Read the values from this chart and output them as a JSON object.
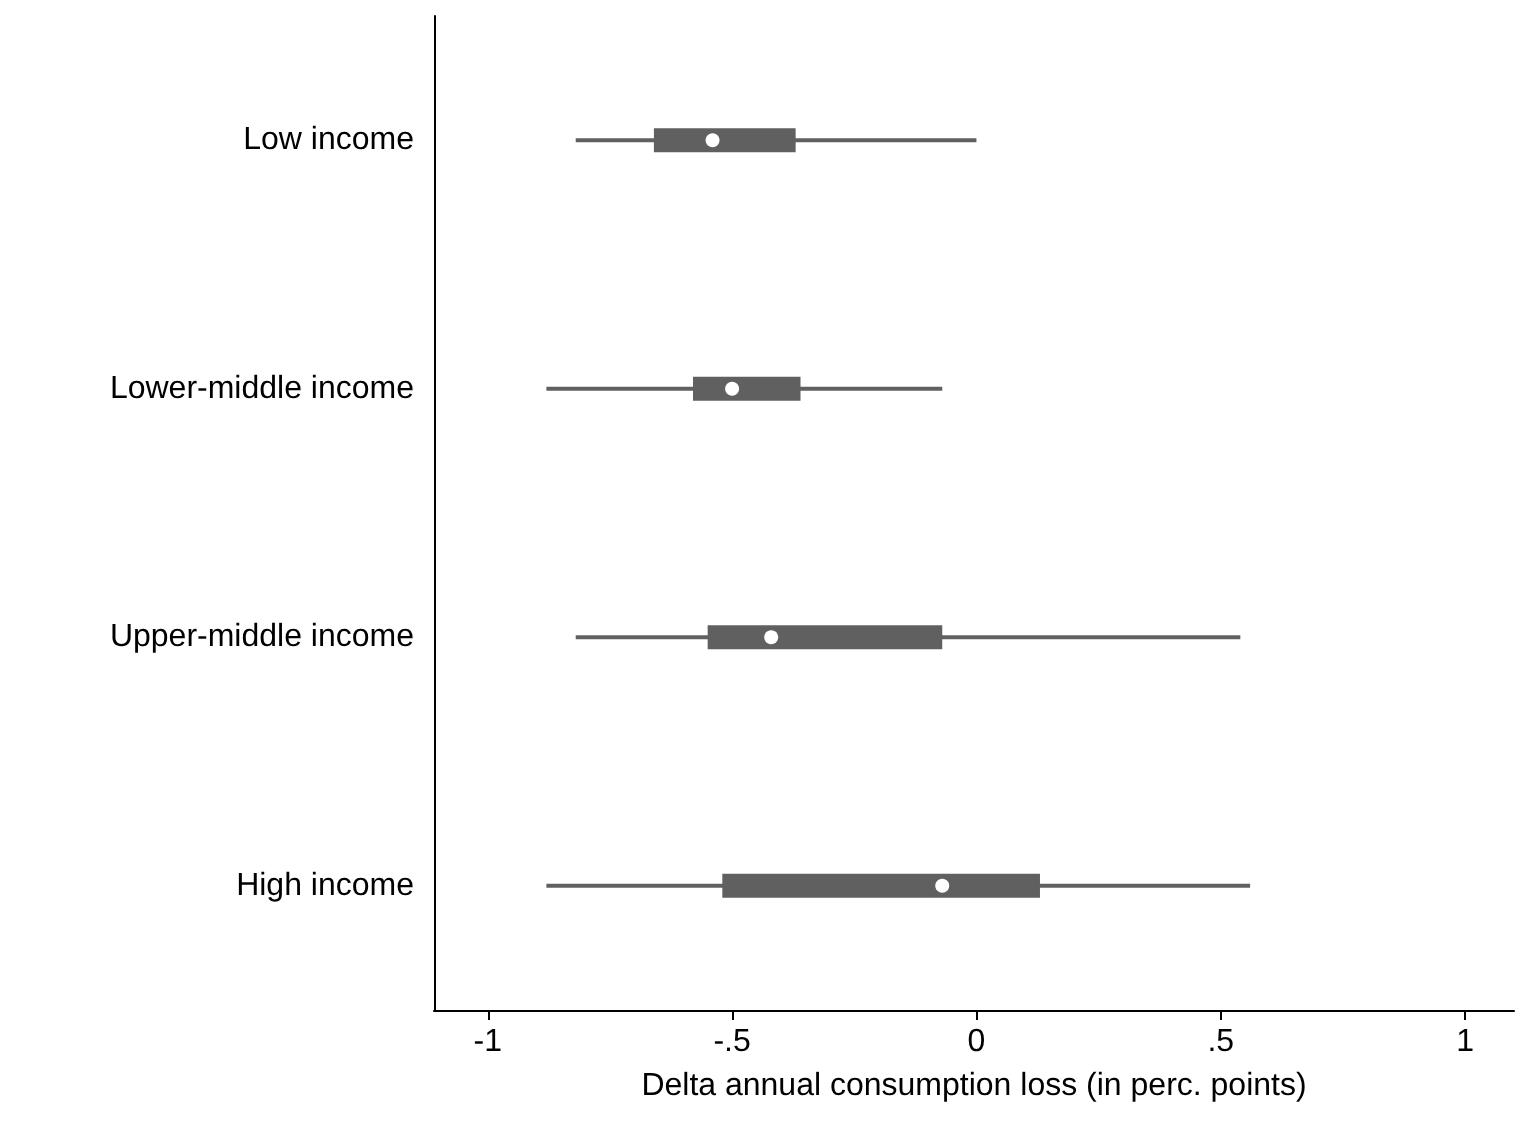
{
  "chart_data": {
    "type": "box",
    "orientation": "horizontal",
    "xlabel": "Delta annual consumption loss (in perc. points)",
    "categories": [
      "Low income",
      "Lower-middle income",
      "Upper-middle income",
      "High income"
    ],
    "xlim": [
      -1.11,
      1.1
    ],
    "xticks": [
      {
        "value": -1,
        "label": "-1"
      },
      {
        "value": -0.5,
        "label": "-.5"
      },
      {
        "value": 0,
        "label": "0"
      },
      {
        "value": 0.5,
        "label": ".5"
      },
      {
        "value": 1,
        "label": "1"
      }
    ],
    "grid": false,
    "series": [
      {
        "color": "#606060",
        "boxes": [
          {
            "low": -0.82,
            "q1": -0.66,
            "median": -0.54,
            "q3": -0.37,
            "high": 0.0
          },
          {
            "low": -0.88,
            "q1": -0.58,
            "median": -0.5,
            "q3": -0.36,
            "high": -0.07
          },
          {
            "low": -0.82,
            "q1": -0.55,
            "median": -0.42,
            "q3": -0.07,
            "high": 0.54
          },
          {
            "low": -0.88,
            "q1": -0.52,
            "median": -0.07,
            "q3": 0.13,
            "high": 0.56
          }
        ]
      }
    ]
  }
}
